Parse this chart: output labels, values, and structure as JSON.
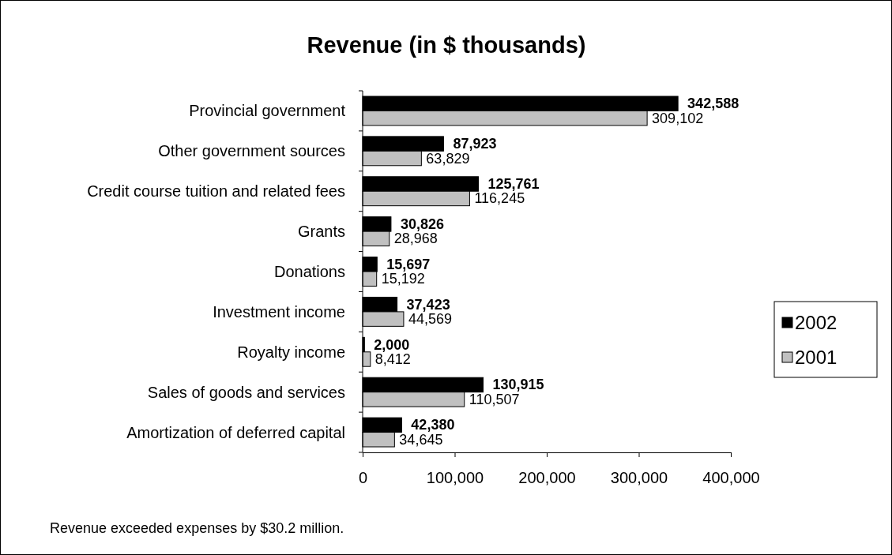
{
  "chart_data": {
    "type": "bar",
    "orientation": "horizontal",
    "title": "Revenue (in $ thousands)",
    "categories": [
      "Provincial government",
      "Other government sources",
      "Credit course tuition and related fees",
      "Grants",
      "Donations",
      "Investment income",
      "Royalty income",
      "Sales of goods and services",
      "Amortization of deferred capital"
    ],
    "series": [
      {
        "name": "2002",
        "color": "#000000",
        "values": [
          342588,
          87923,
          125761,
          30826,
          15697,
          37423,
          2000,
          130915,
          42380
        ],
        "value_labels": [
          "342,588",
          "87,923",
          "125,761",
          "30,826",
          "15,697",
          "37,423",
          "2,000",
          "130,915",
          "42,380"
        ]
      },
      {
        "name": "2001",
        "color": "#c0c0c0",
        "values": [
          309102,
          63829,
          116245,
          28968,
          15192,
          44569,
          8412,
          110507,
          34645
        ],
        "value_labels": [
          "309,102",
          "63,829",
          "116,245",
          "28,968",
          "15,192",
          "44,569",
          "8,412",
          "110,507",
          "34,645"
        ]
      }
    ],
    "xlim": [
      0,
      400000
    ],
    "xticks": [
      0,
      {
        "value": 100000,
        "label": "100,000"
      },
      {
        "value": 200000,
        "label": "200,000"
      },
      {
        "value": 300000,
        "label": "300,000"
      },
      {
        "value": 400000,
        "label": "400,000"
      }
    ],
    "legend": "right",
    "grid": false,
    "annotations": [
      "Revenue exceeded expenses by $30.2 million."
    ]
  }
}
